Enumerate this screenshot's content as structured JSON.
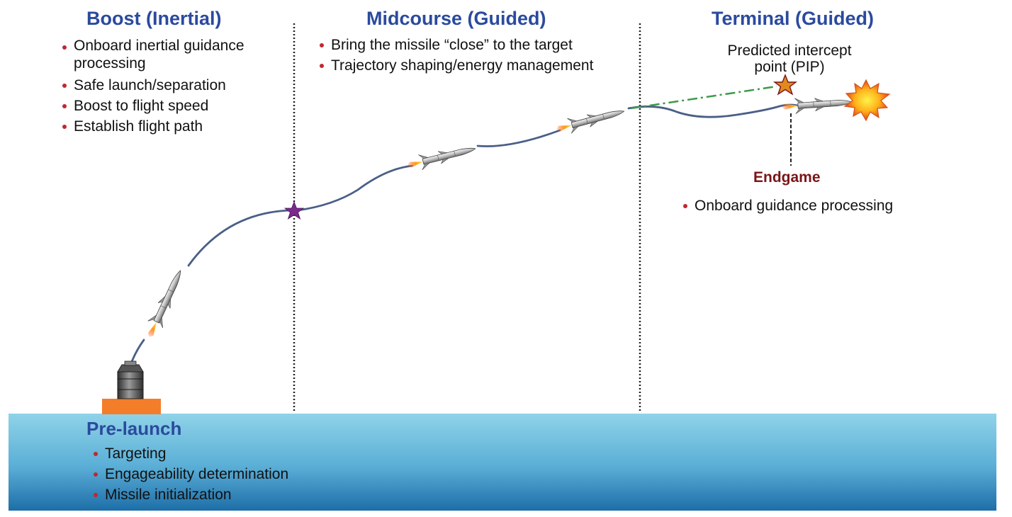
{
  "phases": {
    "boost": {
      "title": "Boost (Inertial)",
      "bullets": [
        "Onboard inertial guidance processing",
        "Safe launch/separation",
        "Boost to flight speed",
        "Establish flight path"
      ]
    },
    "midcourse": {
      "title": "Midcourse (Guided)",
      "bullets": [
        "Bring the missile “close” to the target",
        "Trajectory shaping/energy management"
      ]
    },
    "terminal": {
      "title": "Terminal (Guided)",
      "pip_label_line1": "Predicted intercept",
      "pip_label_line2": "point (PIP)",
      "endgame": {
        "title": "Endgame",
        "bullets": [
          "Onboard guidance processing"
        ]
      }
    },
    "prelaunch": {
      "title": "Pre-launch",
      "bullets": [
        "Targeting",
        "Engageability determination",
        "Missile initialization"
      ]
    }
  },
  "colors": {
    "title_blue": "#2b4a9e",
    "bullet_red": "#c0282e",
    "endgame_red": "#7a1518",
    "trajectory": "#4a5f86",
    "pip_line": "#3d9a4a",
    "transition_star": "#7b2a8c",
    "pip_star": "#e08a1e",
    "launcher_base": "#f47d2a"
  },
  "icons": {
    "missile": "missile-icon",
    "launcher": "launcher-icon",
    "explosion": "explosion-icon",
    "star": "star-icon"
  }
}
